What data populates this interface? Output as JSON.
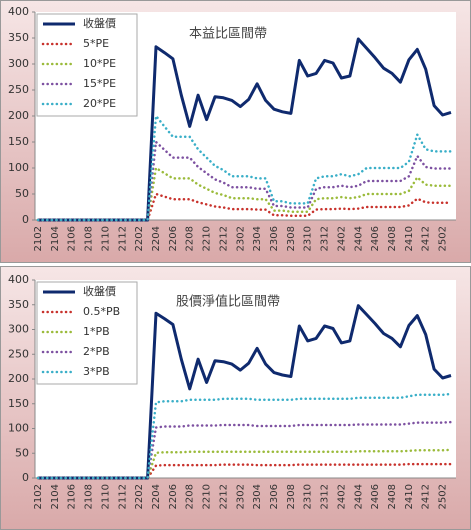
{
  "chart_data": [
    {
      "type": "line",
      "title": "本益比區間帶",
      "categories": [
        "2102",
        null,
        "2104",
        null,
        "2106",
        null,
        "2108",
        null,
        "2110",
        null,
        "2112",
        null,
        "2202",
        null,
        "2204",
        null,
        "2206",
        null,
        "2208",
        null,
        "2210",
        null,
        "2212",
        null,
        "2302",
        null,
        "2304",
        null,
        "2306",
        null,
        "2308",
        null,
        "2310",
        null,
        "2312",
        null,
        "2402",
        null,
        "2404",
        null,
        "2406",
        null,
        "2408",
        null,
        "2410",
        null,
        "2412",
        null,
        "2502",
        null
      ],
      "ylim": [
        0,
        400
      ],
      "yticks": [
        0,
        50,
        100,
        150,
        200,
        250,
        300,
        350,
        400
      ],
      "grid": false,
      "legend": "top-left",
      "series": [
        {
          "name": "收盤價",
          "color": "#0f2a6e",
          "values": [
            0,
            0,
            0,
            0,
            0,
            0,
            0,
            0,
            0,
            0,
            0,
            0,
            0,
            0,
            333,
            322,
            310,
            240,
            180,
            240,
            193,
            237,
            235,
            230,
            218,
            232,
            262,
            230,
            213,
            208,
            205,
            307,
            277,
            282,
            307,
            302,
            273,
            277,
            348,
            330,
            312,
            292,
            282,
            265,
            308,
            328,
            290,
            220,
            202,
            207
          ]
        },
        {
          "name": "5*PE",
          "color": "#c8322c",
          "values": [
            0,
            0,
            0,
            0,
            0,
            0,
            0,
            0,
            0,
            0,
            0,
            0,
            0,
            0,
            50,
            45,
            40,
            40,
            40,
            34,
            30,
            26,
            24,
            21,
            21,
            21,
            20,
            20,
            9,
            9,
            8,
            8,
            8,
            20,
            21,
            21,
            22,
            21,
            22,
            25,
            25,
            25,
            25,
            25,
            28,
            41,
            34,
            33,
            33,
            33
          ]
        },
        {
          "name": "10*PE",
          "color": "#9bbb3b",
          "values": [
            0,
            0,
            0,
            0,
            0,
            0,
            0,
            0,
            0,
            0,
            0,
            0,
            0,
            0,
            100,
            90,
            80,
            80,
            80,
            68,
            60,
            52,
            48,
            42,
            42,
            42,
            40,
            40,
            18,
            18,
            16,
            16,
            16,
            40,
            42,
            42,
            44,
            42,
            44,
            50,
            50,
            50,
            50,
            50,
            56,
            82,
            68,
            66,
            66,
            66
          ]
        },
        {
          "name": "15*PE",
          "color": "#7d51a1",
          "values": [
            0,
            0,
            0,
            0,
            0,
            0,
            0,
            0,
            0,
            0,
            0,
            0,
            0,
            0,
            150,
            135,
            120,
            120,
            120,
            102,
            90,
            78,
            72,
            63,
            63,
            63,
            60,
            60,
            27,
            27,
            24,
            24,
            24,
            60,
            63,
            63,
            66,
            63,
            66,
            75,
            75,
            75,
            75,
            75,
            84,
            123,
            102,
            99,
            99,
            99
          ]
        },
        {
          "name": "20*PE",
          "color": "#3aafc8",
          "values": [
            0,
            0,
            0,
            0,
            0,
            0,
            0,
            0,
            0,
            0,
            0,
            0,
            0,
            0,
            200,
            180,
            160,
            160,
            160,
            136,
            120,
            104,
            96,
            84,
            84,
            84,
            80,
            80,
            36,
            36,
            32,
            32,
            32,
            80,
            84,
            84,
            88,
            84,
            88,
            100,
            100,
            100,
            100,
            100,
            112,
            164,
            136,
            132,
            132,
            132
          ]
        }
      ]
    },
    {
      "type": "line",
      "title": "股價淨值比區間帶",
      "categories": [
        "2102",
        null,
        "2104",
        null,
        "2106",
        null,
        "2108",
        null,
        "2110",
        null,
        "2112",
        null,
        "2202",
        null,
        "2204",
        null,
        "2206",
        null,
        "2208",
        null,
        "2210",
        null,
        "2212",
        null,
        "2302",
        null,
        "2304",
        null,
        "2306",
        null,
        "2308",
        null,
        "2310",
        null,
        "2312",
        null,
        "2402",
        null,
        "2404",
        null,
        "2406",
        null,
        "2408",
        null,
        "2410",
        null,
        "2412",
        null,
        "2502",
        null
      ],
      "ylim": [
        0,
        400
      ],
      "yticks": [
        0,
        50,
        100,
        150,
        200,
        250,
        300,
        350,
        400
      ],
      "grid": false,
      "legend": "top-left",
      "series": [
        {
          "name": "收盤價",
          "color": "#0f2a6e",
          "values": [
            0,
            0,
            0,
            0,
            0,
            0,
            0,
            0,
            0,
            0,
            0,
            0,
            0,
            0,
            333,
            322,
            310,
            240,
            180,
            240,
            193,
            237,
            235,
            230,
            218,
            232,
            262,
            230,
            213,
            208,
            205,
            307,
            277,
            282,
            307,
            302,
            273,
            277,
            348,
            330,
            312,
            292,
            282,
            265,
            308,
            328,
            290,
            220,
            202,
            207
          ]
        },
        {
          "name": "0.5*PB",
          "color": "#c8322c",
          "values": [
            0,
            0,
            0,
            0,
            0,
            0,
            0,
            0,
            0,
            0,
            0,
            0,
            0,
            0,
            25,
            26,
            26,
            26,
            26,
            26,
            26,
            26,
            27,
            27,
            27,
            27,
            26,
            26,
            26,
            26,
            26,
            27,
            27,
            27,
            27,
            27,
            27,
            27,
            27,
            27,
            27,
            27,
            27,
            27,
            28,
            28,
            28,
            28,
            28,
            28
          ]
        },
        {
          "name": "1*PB",
          "color": "#9bbb3b",
          "values": [
            0,
            0,
            0,
            0,
            0,
            0,
            0,
            0,
            0,
            0,
            0,
            0,
            0,
            0,
            51,
            52,
            52,
            52,
            53,
            53,
            53,
            53,
            53,
            53,
            53,
            53,
            53,
            53,
            53,
            53,
            53,
            53,
            53,
            53,
            53,
            53,
            53,
            53,
            54,
            54,
            54,
            54,
            54,
            54,
            55,
            56,
            56,
            56,
            56,
            57
          ]
        },
        {
          "name": "2*PB",
          "color": "#7d51a1",
          "values": [
            0,
            0,
            0,
            0,
            0,
            0,
            0,
            0,
            0,
            0,
            0,
            0,
            0,
            0,
            102,
            104,
            104,
            104,
            106,
            106,
            106,
            106,
            107,
            107,
            107,
            107,
            105,
            105,
            105,
            105,
            105,
            107,
            107,
            107,
            107,
            107,
            107,
            107,
            108,
            108,
            108,
            108,
            108,
            108,
            110,
            112,
            112,
            112,
            112,
            113
          ]
        },
        {
          "name": "3*PB",
          "color": "#3aafc8",
          "values": [
            0,
            0,
            0,
            0,
            0,
            0,
            0,
            0,
            0,
            0,
            0,
            0,
            0,
            0,
            153,
            155,
            155,
            155,
            158,
            158,
            158,
            158,
            160,
            160,
            160,
            160,
            158,
            158,
            158,
            158,
            158,
            160,
            160,
            160,
            160,
            160,
            160,
            160,
            162,
            162,
            162,
            162,
            162,
            162,
            165,
            168,
            168,
            168,
            168,
            170
          ]
        }
      ]
    }
  ]
}
